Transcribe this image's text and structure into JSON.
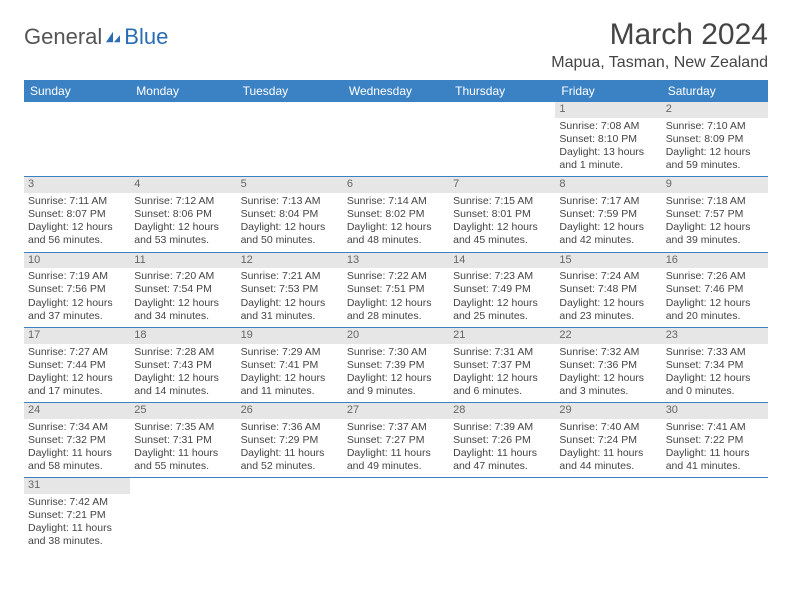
{
  "logo": {
    "part1": "General",
    "part2": "Blue"
  },
  "title": "March 2024",
  "location": "Mapua, Tasman, New Zealand",
  "colors": {
    "header_bg": "#3b82c4",
    "header_text": "#ffffff",
    "daynum_bg": "#e6e6e6",
    "daynum_text": "#666666",
    "border": "#3b82c4",
    "logo_accent": "#2a6db5",
    "body_text": "#444444"
  },
  "day_headers": [
    "Sunday",
    "Monday",
    "Tuesday",
    "Wednesday",
    "Thursday",
    "Friday",
    "Saturday"
  ],
  "weeks": [
    [
      {
        "n": "",
        "sr": "",
        "ss": "",
        "dl": ""
      },
      {
        "n": "",
        "sr": "",
        "ss": "",
        "dl": ""
      },
      {
        "n": "",
        "sr": "",
        "ss": "",
        "dl": ""
      },
      {
        "n": "",
        "sr": "",
        "ss": "",
        "dl": ""
      },
      {
        "n": "",
        "sr": "",
        "ss": "",
        "dl": ""
      },
      {
        "n": "1",
        "sr": "Sunrise: 7:08 AM",
        "ss": "Sunset: 8:10 PM",
        "dl": "Daylight: 13 hours and 1 minute."
      },
      {
        "n": "2",
        "sr": "Sunrise: 7:10 AM",
        "ss": "Sunset: 8:09 PM",
        "dl": "Daylight: 12 hours and 59 minutes."
      }
    ],
    [
      {
        "n": "3",
        "sr": "Sunrise: 7:11 AM",
        "ss": "Sunset: 8:07 PM",
        "dl": "Daylight: 12 hours and 56 minutes."
      },
      {
        "n": "4",
        "sr": "Sunrise: 7:12 AM",
        "ss": "Sunset: 8:06 PM",
        "dl": "Daylight: 12 hours and 53 minutes."
      },
      {
        "n": "5",
        "sr": "Sunrise: 7:13 AM",
        "ss": "Sunset: 8:04 PM",
        "dl": "Daylight: 12 hours and 50 minutes."
      },
      {
        "n": "6",
        "sr": "Sunrise: 7:14 AM",
        "ss": "Sunset: 8:02 PM",
        "dl": "Daylight: 12 hours and 48 minutes."
      },
      {
        "n": "7",
        "sr": "Sunrise: 7:15 AM",
        "ss": "Sunset: 8:01 PM",
        "dl": "Daylight: 12 hours and 45 minutes."
      },
      {
        "n": "8",
        "sr": "Sunrise: 7:17 AM",
        "ss": "Sunset: 7:59 PM",
        "dl": "Daylight: 12 hours and 42 minutes."
      },
      {
        "n": "9",
        "sr": "Sunrise: 7:18 AM",
        "ss": "Sunset: 7:57 PM",
        "dl": "Daylight: 12 hours and 39 minutes."
      }
    ],
    [
      {
        "n": "10",
        "sr": "Sunrise: 7:19 AM",
        "ss": "Sunset: 7:56 PM",
        "dl": "Daylight: 12 hours and 37 minutes."
      },
      {
        "n": "11",
        "sr": "Sunrise: 7:20 AM",
        "ss": "Sunset: 7:54 PM",
        "dl": "Daylight: 12 hours and 34 minutes."
      },
      {
        "n": "12",
        "sr": "Sunrise: 7:21 AM",
        "ss": "Sunset: 7:53 PM",
        "dl": "Daylight: 12 hours and 31 minutes."
      },
      {
        "n": "13",
        "sr": "Sunrise: 7:22 AM",
        "ss": "Sunset: 7:51 PM",
        "dl": "Daylight: 12 hours and 28 minutes."
      },
      {
        "n": "14",
        "sr": "Sunrise: 7:23 AM",
        "ss": "Sunset: 7:49 PM",
        "dl": "Daylight: 12 hours and 25 minutes."
      },
      {
        "n": "15",
        "sr": "Sunrise: 7:24 AM",
        "ss": "Sunset: 7:48 PM",
        "dl": "Daylight: 12 hours and 23 minutes."
      },
      {
        "n": "16",
        "sr": "Sunrise: 7:26 AM",
        "ss": "Sunset: 7:46 PM",
        "dl": "Daylight: 12 hours and 20 minutes."
      }
    ],
    [
      {
        "n": "17",
        "sr": "Sunrise: 7:27 AM",
        "ss": "Sunset: 7:44 PM",
        "dl": "Daylight: 12 hours and 17 minutes."
      },
      {
        "n": "18",
        "sr": "Sunrise: 7:28 AM",
        "ss": "Sunset: 7:43 PM",
        "dl": "Daylight: 12 hours and 14 minutes."
      },
      {
        "n": "19",
        "sr": "Sunrise: 7:29 AM",
        "ss": "Sunset: 7:41 PM",
        "dl": "Daylight: 12 hours and 11 minutes."
      },
      {
        "n": "20",
        "sr": "Sunrise: 7:30 AM",
        "ss": "Sunset: 7:39 PM",
        "dl": "Daylight: 12 hours and 9 minutes."
      },
      {
        "n": "21",
        "sr": "Sunrise: 7:31 AM",
        "ss": "Sunset: 7:37 PM",
        "dl": "Daylight: 12 hours and 6 minutes."
      },
      {
        "n": "22",
        "sr": "Sunrise: 7:32 AM",
        "ss": "Sunset: 7:36 PM",
        "dl": "Daylight: 12 hours and 3 minutes."
      },
      {
        "n": "23",
        "sr": "Sunrise: 7:33 AM",
        "ss": "Sunset: 7:34 PM",
        "dl": "Daylight: 12 hours and 0 minutes."
      }
    ],
    [
      {
        "n": "24",
        "sr": "Sunrise: 7:34 AM",
        "ss": "Sunset: 7:32 PM",
        "dl": "Daylight: 11 hours and 58 minutes."
      },
      {
        "n": "25",
        "sr": "Sunrise: 7:35 AM",
        "ss": "Sunset: 7:31 PM",
        "dl": "Daylight: 11 hours and 55 minutes."
      },
      {
        "n": "26",
        "sr": "Sunrise: 7:36 AM",
        "ss": "Sunset: 7:29 PM",
        "dl": "Daylight: 11 hours and 52 minutes."
      },
      {
        "n": "27",
        "sr": "Sunrise: 7:37 AM",
        "ss": "Sunset: 7:27 PM",
        "dl": "Daylight: 11 hours and 49 minutes."
      },
      {
        "n": "28",
        "sr": "Sunrise: 7:39 AM",
        "ss": "Sunset: 7:26 PM",
        "dl": "Daylight: 11 hours and 47 minutes."
      },
      {
        "n": "29",
        "sr": "Sunrise: 7:40 AM",
        "ss": "Sunset: 7:24 PM",
        "dl": "Daylight: 11 hours and 44 minutes."
      },
      {
        "n": "30",
        "sr": "Sunrise: 7:41 AM",
        "ss": "Sunset: 7:22 PM",
        "dl": "Daylight: 11 hours and 41 minutes."
      }
    ],
    [
      {
        "n": "31",
        "sr": "Sunrise: 7:42 AM",
        "ss": "Sunset: 7:21 PM",
        "dl": "Daylight: 11 hours and 38 minutes."
      },
      {
        "n": "",
        "sr": "",
        "ss": "",
        "dl": ""
      },
      {
        "n": "",
        "sr": "",
        "ss": "",
        "dl": ""
      },
      {
        "n": "",
        "sr": "",
        "ss": "",
        "dl": ""
      },
      {
        "n": "",
        "sr": "",
        "ss": "",
        "dl": ""
      },
      {
        "n": "",
        "sr": "",
        "ss": "",
        "dl": ""
      },
      {
        "n": "",
        "sr": "",
        "ss": "",
        "dl": ""
      }
    ]
  ]
}
